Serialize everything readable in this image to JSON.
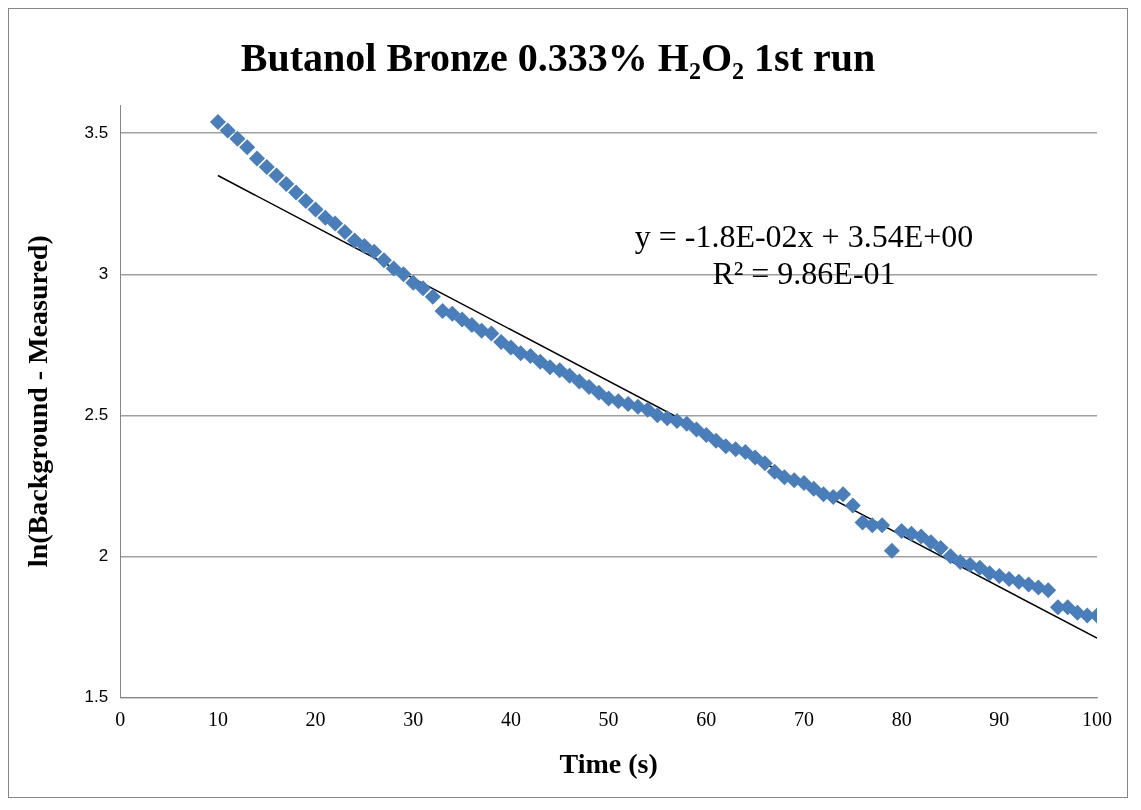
{
  "chart_data": {
    "type": "scatter",
    "title": "Butanol Bronze 0.333% H₂O₂ 1st run",
    "xlabel": "Time (s)",
    "ylabel": "ln(Background - Measured)",
    "xlim": [
      0,
      100
    ],
    "xticks": [
      0,
      10,
      20,
      30,
      40,
      50,
      60,
      70,
      80,
      90,
      100
    ],
    "ylim": [
      1.5,
      3.6
    ],
    "yticks": [
      1.5,
      2,
      2.5,
      3,
      3.5
    ],
    "grid": "y",
    "legend": false,
    "marker": "diamond",
    "annotations": [
      "y = -1.8E-02x + 3.54E+00",
      "R² = 9.86E-01"
    ],
    "series": [
      {
        "type": "scatter",
        "color": "#4a7ebb",
        "x": [
          10,
          11,
          12,
          13,
          14,
          15,
          16,
          17,
          18,
          19,
          20,
          21,
          22,
          23,
          24,
          25,
          26,
          27,
          28,
          29,
          30,
          31,
          32,
          33,
          34,
          35,
          36,
          37,
          38,
          39,
          40,
          41,
          42,
          43,
          44,
          45,
          46,
          47,
          48,
          49,
          50,
          51,
          52,
          53,
          54,
          55,
          56,
          57,
          58,
          59,
          60,
          61,
          62,
          63,
          64,
          65,
          66,
          67,
          68,
          69,
          70,
          71,
          72,
          73,
          74,
          75,
          76,
          77,
          78,
          79,
          80,
          81,
          82,
          83,
          84,
          85,
          86,
          87,
          88,
          89,
          90,
          91,
          92,
          93,
          94,
          95,
          96,
          97,
          98,
          99,
          100
        ],
        "values": [
          3.54,
          3.51,
          3.48,
          3.45,
          3.41,
          3.38,
          3.35,
          3.32,
          3.29,
          3.26,
          3.23,
          3.2,
          3.18,
          3.15,
          3.12,
          3.1,
          3.08,
          3.05,
          3.02,
          3.0,
          2.97,
          2.95,
          2.92,
          2.87,
          2.86,
          2.84,
          2.82,
          2.8,
          2.79,
          2.76,
          2.74,
          2.72,
          2.71,
          2.69,
          2.67,
          2.66,
          2.64,
          2.62,
          2.6,
          2.58,
          2.56,
          2.55,
          2.54,
          2.53,
          2.52,
          2.5,
          2.49,
          2.48,
          2.47,
          2.45,
          2.43,
          2.41,
          2.39,
          2.38,
          2.37,
          2.35,
          2.33,
          2.3,
          2.28,
          2.27,
          2.26,
          2.24,
          2.22,
          2.21,
          2.22,
          2.18,
          2.12,
          2.11,
          2.11,
          2.02,
          2.09,
          2.08,
          2.07,
          2.05,
          2.03,
          2.0,
          1.98,
          1.97,
          1.96,
          1.94,
          1.93,
          1.92,
          1.91,
          1.9,
          1.89,
          1.88,
          1.82,
          1.82,
          1.8,
          1.79,
          1.79
        ]
      },
      {
        "type": "line",
        "color": "#000000",
        "marker": "none",
        "x": [
          10,
          100
        ],
        "values": [
          3.35,
          1.71
        ]
      }
    ]
  }
}
